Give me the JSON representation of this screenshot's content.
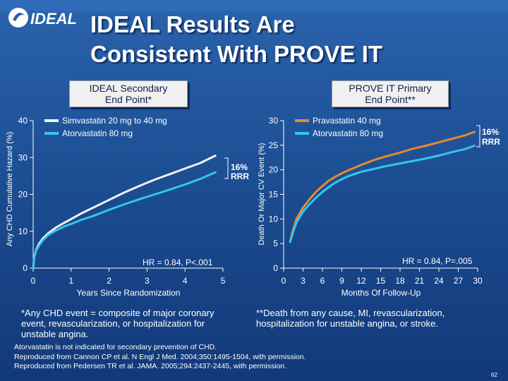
{
  "header": {
    "logo_text": "IDEAL",
    "title_line1": "IDEAL Results Are",
    "title_line2": "Consistent With PROVE IT"
  },
  "colors": {
    "simva": "#f2f2f2",
    "atorva": "#33c6ec",
    "prava": "#e8892e",
    "background": "#1a4a8e"
  },
  "chart_data": [
    {
      "type": "line",
      "panel_title_line1": "IDEAL Secondary",
      "panel_title_line2": "End Point*",
      "ylabel": "Any CHD Cumulative Hazard (%)",
      "xlabel": "Years Since Randomization",
      "xlim": [
        0,
        5
      ],
      "ylim": [
        0,
        40
      ],
      "xticks": [
        "0",
        "1",
        "2",
        "3",
        "4",
        "5"
      ],
      "yticks": [
        "0",
        "10",
        "20",
        "30",
        "40"
      ],
      "legend": [
        "Simvastatin 20 mg to 40 mg",
        "Atorvastatin 80 mg"
      ],
      "annotation_rrr_line1": "16%",
      "annotation_rrr_line2": "RRR",
      "annotation_hr": "HR = 0.84, P<.001",
      "series": [
        {
          "name": "Simvastatin 20 mg to 40 mg",
          "color": "#f2f2f2",
          "x": [
            0,
            0.03,
            0.08,
            0.15,
            0.25,
            0.4,
            0.6,
            0.8,
            1.0,
            1.3,
            1.6,
            2.0,
            2.4,
            2.8,
            3.2,
            3.6,
            4.0,
            4.4,
            4.8
          ],
          "y": [
            0,
            3,
            5,
            6.5,
            8,
            9.5,
            11,
            12.2,
            13.3,
            15,
            16.5,
            18.5,
            20.5,
            22.3,
            24,
            25.5,
            27,
            28.5,
            30.5
          ]
        },
        {
          "name": "Atorvastatin 80 mg",
          "color": "#33c6ec",
          "x": [
            0,
            0.03,
            0.08,
            0.15,
            0.25,
            0.4,
            0.6,
            0.8,
            1.0,
            1.3,
            1.6,
            2.0,
            2.4,
            2.8,
            3.2,
            3.6,
            4.0,
            4.4,
            4.8
          ],
          "y": [
            0,
            3,
            4.8,
            6,
            7.5,
            9,
            10.2,
            11.2,
            12,
            13.2,
            14.2,
            15.8,
            17.3,
            18.7,
            20,
            21.3,
            22.7,
            24.2,
            26
          ]
        }
      ]
    },
    {
      "type": "line",
      "panel_title_line1": "PROVE IT Primary",
      "panel_title_line2": "End Point**",
      "ylabel": "Death Or Major CV Event (%)",
      "xlabel": "Months Of Follow-Up",
      "xlim": [
        0,
        30
      ],
      "ylim": [
        0,
        30
      ],
      "xticks": [
        "0",
        "3",
        "6",
        "9",
        "12",
        "15",
        "18",
        "21",
        "24",
        "27",
        "30"
      ],
      "yticks": [
        "0",
        "5",
        "10",
        "15",
        "20",
        "25",
        "30"
      ],
      "legend": [
        "Pravastatin 40 mg",
        "Atorvastatin 80 mg"
      ],
      "annotation_rrr_line1": "16%",
      "annotation_rrr_line2": "RRR",
      "annotation_hr": "HR = 0.84, P=.005",
      "series": [
        {
          "name": "Pravastatin 40 mg",
          "color": "#e8892e",
          "x": [
            1,
            1.5,
            2,
            3,
            4,
            5,
            6,
            7,
            8,
            9,
            10,
            12,
            14,
            16,
            18,
            20,
            22,
            24,
            26,
            28,
            29.5
          ],
          "y": [
            5.5,
            8,
            10,
            12.3,
            14,
            15.5,
            16.7,
            17.8,
            18.6,
            19.3,
            19.9,
            21,
            22,
            22.8,
            23.5,
            24.3,
            24.9,
            25.6,
            26.3,
            27,
            27.7
          ]
        },
        {
          "name": "Atorvastatin 80 mg",
          "color": "#33c6ec",
          "x": [
            1,
            1.5,
            2,
            3,
            4,
            5,
            6,
            7,
            8,
            9,
            10,
            12,
            14,
            16,
            18,
            20,
            22,
            24,
            26,
            28,
            29.5
          ],
          "y": [
            5.3,
            7.5,
            9.3,
            11.5,
            13,
            14.3,
            15.5,
            16.5,
            17.4,
            18.1,
            18.7,
            19.6,
            20.2,
            20.8,
            21.3,
            21.8,
            22.3,
            22.9,
            23.6,
            24.2,
            24.9
          ]
        }
      ]
    }
  ],
  "footnotes": {
    "left": "*Any CHD event = composite of major coronary event, revascularization, or hospitalization for unstable angina.",
    "right": "**Death from any cause, MI, revascularization, hospitalization for unstable angina, or stroke."
  },
  "references": {
    "line1": "Atorvastatin is not indicated for secondary prevention of CHD.",
    "line2": "Reproduced from Cannon CP et al. N Engl J Med. 2004;350:1495-1504, with permission.",
    "line3": "Reproduced from Pedersen TR et al. JAMA. 2005;294:2437-2445, with permission."
  },
  "page_number": "62"
}
